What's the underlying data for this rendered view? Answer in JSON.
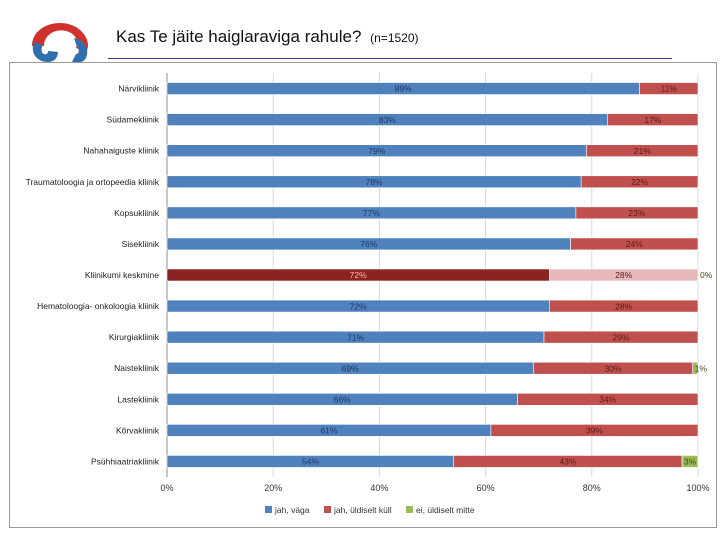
{
  "header": {
    "title": "Kas Te jäite haiglaraviga rahule?",
    "subtitle": "(n=1520)"
  },
  "colors": {
    "logo_red": "#d0312d",
    "logo_blue": "#2f6fae",
    "series_1": "#4f81bd",
    "series_2": "#c0504d",
    "series_3": "#9bbb59",
    "highlight_1": "#8b2323",
    "highlight_2": "#e6b9b8"
  },
  "logo": {
    "icon": "hospital-logo-icon"
  },
  "chart_data": {
    "type": "bar",
    "orientation": "horizontal",
    "stacked": "100%",
    "title": "Kas Te jäite haiglaraviga rahule?",
    "subtitle": "(n=1520)",
    "xlabel": "",
    "ylabel": "",
    "xlim": [
      0,
      100
    ],
    "x_ticks": [
      "0%",
      "20%",
      "40%",
      "60%",
      "80%",
      "100%"
    ],
    "legend_position": "bottom",
    "grid": true,
    "categories": [
      "Närvikliinik",
      "Südamekliinik",
      "Nahahaiguste kliinik",
      "Traumatoloogia ja ortopeedia kliinik",
      "Kopsukliinik",
      "Sisekliinik",
      "Kliinikumi keskmine",
      "Hematoloogia- onkoloogia kliinik",
      "Kirurgiakliinik",
      "Naistekliinik",
      "Lastekliinik",
      "Kõrvakliinik",
      "Psühhiaatriakliinik"
    ],
    "highlighted_category": "Kliinikumi keskmine",
    "series": [
      {
        "name": "jah, väga",
        "values": [
          89,
          83,
          79,
          78,
          77,
          76,
          72,
          72,
          71,
          69,
          66,
          61,
          54
        ],
        "labels": [
          "89%",
          "83%",
          "79%",
          "78%",
          "77%",
          "76%",
          "72%",
          "72%",
          "71%",
          "69%",
          "66%",
          "61%",
          "54%"
        ]
      },
      {
        "name": "jah, üldiselt küll",
        "values": [
          11,
          17,
          21,
          22,
          23,
          24,
          28,
          28,
          29,
          30,
          34,
          39,
          43
        ],
        "labels": [
          "11%",
          "17%",
          "21%",
          "22%",
          "23%",
          "24%",
          "28%",
          "28%",
          "29%",
          "30%",
          "34%",
          "39%",
          "43%"
        ]
      },
      {
        "name": "ei, üldiselt mitte",
        "values": [
          0,
          0,
          0,
          0,
          0,
          0,
          0,
          0,
          0,
          1,
          0,
          0,
          3
        ],
        "labels": [
          "",
          "",
          "",
          "",
          "",
          "",
          "0%",
          "",
          "",
          "1%",
          "",
          "",
          "3%"
        ]
      }
    ]
  }
}
